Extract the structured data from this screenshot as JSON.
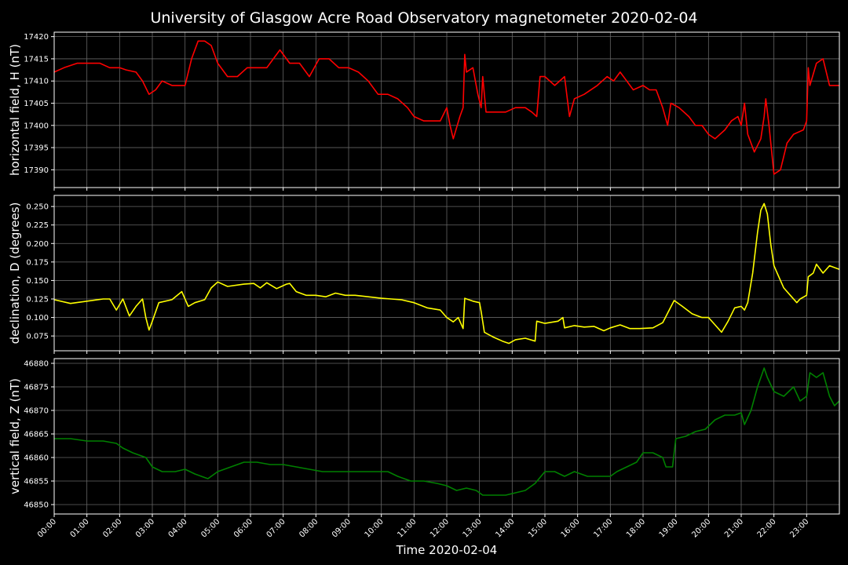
{
  "chart_data": {
    "type": "line",
    "title": "University of Glasgow Acre Road Observatory magnetometer 2020-02-04",
    "xlabel": "Time 2020-02-04",
    "x_ticks": [
      "00:00",
      "01:00",
      "02:00",
      "03:00",
      "04:00",
      "05:00",
      "06:00",
      "07:00",
      "08:00",
      "09:00",
      "10:00",
      "11:00",
      "12:00",
      "13:00",
      "14:00",
      "15:00",
      "16:00",
      "17:00",
      "18:00",
      "19:00",
      "20:00",
      "21:00",
      "22:00",
      "23:00"
    ],
    "xlim_hours": [
      0,
      24
    ],
    "grid": true,
    "panels": [
      {
        "ylabel": "horizontal field, H (nT)",
        "color": "#ff0000",
        "ylim": [
          17386,
          17421
        ],
        "yticks": [
          17390,
          17395,
          17400,
          17405,
          17410,
          17415,
          17420
        ],
        "points": [
          [
            0,
            17412
          ],
          [
            0.3,
            17413
          ],
          [
            0.7,
            17414
          ],
          [
            1,
            17414
          ],
          [
            1.4,
            17414
          ],
          [
            1.7,
            17413
          ],
          [
            2,
            17413
          ],
          [
            2.2,
            17412.5
          ],
          [
            2.5,
            17412
          ],
          [
            2.7,
            17410
          ],
          [
            2.9,
            17407
          ],
          [
            3.1,
            17408
          ],
          [
            3.3,
            17410
          ],
          [
            3.6,
            17409
          ],
          [
            3.8,
            17409
          ],
          [
            4,
            17409
          ],
          [
            4.2,
            17415
          ],
          [
            4.4,
            17419
          ],
          [
            4.6,
            17419
          ],
          [
            4.8,
            17418
          ],
          [
            5.0,
            17414
          ],
          [
            5.3,
            17411
          ],
          [
            5.6,
            17411
          ],
          [
            5.9,
            17413
          ],
          [
            6.2,
            17413
          ],
          [
            6.5,
            17413
          ],
          [
            6.7,
            17415
          ],
          [
            6.9,
            17417
          ],
          [
            7.2,
            17414
          ],
          [
            7.5,
            17414
          ],
          [
            7.8,
            17411
          ],
          [
            8.1,
            17415
          ],
          [
            8.4,
            17415
          ],
          [
            8.7,
            17413
          ],
          [
            9.0,
            17413
          ],
          [
            9.3,
            17412
          ],
          [
            9.6,
            17410
          ],
          [
            9.9,
            17407
          ],
          [
            10.2,
            17407
          ],
          [
            10.5,
            17406
          ],
          [
            10.8,
            17404
          ],
          [
            11.0,
            17402
          ],
          [
            11.3,
            17401
          ],
          [
            11.6,
            17401
          ],
          [
            11.8,
            17401
          ],
          [
            12.0,
            17404
          ],
          [
            12.1,
            17400
          ],
          [
            12.2,
            17397
          ],
          [
            12.4,
            17402
          ],
          [
            12.5,
            17404
          ],
          [
            12.55,
            17416
          ],
          [
            12.6,
            17412
          ],
          [
            12.8,
            17413
          ],
          [
            12.95,
            17407
          ],
          [
            13.05,
            17404
          ],
          [
            13.1,
            17411
          ],
          [
            13.2,
            17403
          ],
          [
            13.5,
            17403
          ],
          [
            13.8,
            17403
          ],
          [
            14.1,
            17404
          ],
          [
            14.4,
            17404
          ],
          [
            14.6,
            17403
          ],
          [
            14.75,
            17402
          ],
          [
            14.85,
            17411
          ],
          [
            15.0,
            17411
          ],
          [
            15.3,
            17409
          ],
          [
            15.6,
            17411
          ],
          [
            15.75,
            17402
          ],
          [
            15.9,
            17406
          ],
          [
            16.2,
            17407
          ],
          [
            16.6,
            17409
          ],
          [
            16.9,
            17411
          ],
          [
            17.1,
            17410
          ],
          [
            17.3,
            17412
          ],
          [
            17.5,
            17410
          ],
          [
            17.7,
            17408
          ],
          [
            18.0,
            17409
          ],
          [
            18.2,
            17408
          ],
          [
            18.4,
            17408
          ],
          [
            18.6,
            17404
          ],
          [
            18.75,
            17400
          ],
          [
            18.85,
            17405
          ],
          [
            19.1,
            17404
          ],
          [
            19.4,
            17402
          ],
          [
            19.6,
            17400
          ],
          [
            19.8,
            17400
          ],
          [
            20.0,
            17398
          ],
          [
            20.2,
            17397
          ],
          [
            20.5,
            17399
          ],
          [
            20.7,
            17401
          ],
          [
            20.9,
            17402
          ],
          [
            21.0,
            17400
          ],
          [
            21.1,
            17405
          ],
          [
            21.2,
            17398
          ],
          [
            21.4,
            17394
          ],
          [
            21.6,
            17397
          ],
          [
            21.7,
            17402
          ],
          [
            21.75,
            17406
          ],
          [
            21.85,
            17400
          ],
          [
            22.0,
            17389
          ],
          [
            22.2,
            17390
          ],
          [
            22.4,
            17396
          ],
          [
            22.6,
            17398
          ],
          [
            22.9,
            17399
          ],
          [
            23.0,
            17401
          ],
          [
            23.05,
            17413
          ],
          [
            23.1,
            17409
          ],
          [
            23.3,
            17414
          ],
          [
            23.5,
            17415
          ],
          [
            23.7,
            17409
          ],
          [
            24.0,
            17409
          ]
        ]
      },
      {
        "ylabel": "declination, D (degrees)",
        "color": "#ffff00",
        "ylim": [
          0.055,
          0.265
        ],
        "yticks": [
          0.075,
          0.1,
          0.125,
          0.15,
          0.175,
          0.2,
          0.225,
          0.25
        ],
        "ytick_labels": [
          "0.075",
          "0.100",
          "0.125",
          "0.150",
          "0.175",
          "0.200",
          "0.225",
          "0.250"
        ],
        "points": [
          [
            0,
            0.124
          ],
          [
            0.5,
            0.119
          ],
          [
            1,
            0.122
          ],
          [
            1.5,
            0.125
          ],
          [
            1.7,
            0.125
          ],
          [
            1.9,
            0.11
          ],
          [
            2.1,
            0.125
          ],
          [
            2.3,
            0.102
          ],
          [
            2.5,
            0.115
          ],
          [
            2.7,
            0.125
          ],
          [
            2.8,
            0.1
          ],
          [
            2.9,
            0.083
          ],
          [
            3.0,
            0.095
          ],
          [
            3.2,
            0.12
          ],
          [
            3.6,
            0.124
          ],
          [
            3.9,
            0.135
          ],
          [
            4.1,
            0.115
          ],
          [
            4.3,
            0.12
          ],
          [
            4.6,
            0.124
          ],
          [
            4.8,
            0.14
          ],
          [
            5.0,
            0.148
          ],
          [
            5.3,
            0.142
          ],
          [
            5.8,
            0.145
          ],
          [
            6.1,
            0.146
          ],
          [
            6.3,
            0.14
          ],
          [
            6.5,
            0.147
          ],
          [
            6.8,
            0.139
          ],
          [
            7.1,
            0.145
          ],
          [
            7.2,
            0.146
          ],
          [
            7.4,
            0.135
          ],
          [
            7.7,
            0.13
          ],
          [
            8.0,
            0.13
          ],
          [
            8.3,
            0.128
          ],
          [
            8.6,
            0.133
          ],
          [
            8.9,
            0.13
          ],
          [
            9.2,
            0.13
          ],
          [
            9.6,
            0.128
          ],
          [
            10.0,
            0.126
          ],
          [
            10.3,
            0.125
          ],
          [
            10.6,
            0.124
          ],
          [
            11.0,
            0.12
          ],
          [
            11.4,
            0.113
          ],
          [
            11.8,
            0.11
          ],
          [
            12.0,
            0.1
          ],
          [
            12.2,
            0.094
          ],
          [
            12.35,
            0.1
          ],
          [
            12.5,
            0.085
          ],
          [
            12.55,
            0.126
          ],
          [
            12.8,
            0.122
          ],
          [
            13.0,
            0.12
          ],
          [
            13.05,
            0.108
          ],
          [
            13.15,
            0.08
          ],
          [
            13.4,
            0.074
          ],
          [
            13.7,
            0.068
          ],
          [
            13.9,
            0.065
          ],
          [
            14.1,
            0.07
          ],
          [
            14.4,
            0.072
          ],
          [
            14.7,
            0.068
          ],
          [
            14.75,
            0.095
          ],
          [
            15.0,
            0.092
          ],
          [
            15.4,
            0.095
          ],
          [
            15.55,
            0.1
          ],
          [
            15.6,
            0.086
          ],
          [
            15.9,
            0.089
          ],
          [
            16.2,
            0.087
          ],
          [
            16.5,
            0.088
          ],
          [
            16.8,
            0.082
          ],
          [
            17.0,
            0.086
          ],
          [
            17.3,
            0.09
          ],
          [
            17.6,
            0.085
          ],
          [
            17.9,
            0.085
          ],
          [
            18.3,
            0.086
          ],
          [
            18.6,
            0.093
          ],
          [
            18.8,
            0.11
          ],
          [
            18.95,
            0.123
          ],
          [
            19.2,
            0.115
          ],
          [
            19.5,
            0.105
          ],
          [
            19.8,
            0.1
          ],
          [
            20.0,
            0.1
          ],
          [
            20.2,
            0.09
          ],
          [
            20.4,
            0.08
          ],
          [
            20.6,
            0.095
          ],
          [
            20.8,
            0.113
          ],
          [
            21.0,
            0.115
          ],
          [
            21.1,
            0.11
          ],
          [
            21.2,
            0.12
          ],
          [
            21.35,
            0.16
          ],
          [
            21.5,
            0.215
          ],
          [
            21.6,
            0.245
          ],
          [
            21.7,
            0.254
          ],
          [
            21.8,
            0.24
          ],
          [
            21.9,
            0.2
          ],
          [
            22.0,
            0.17
          ],
          [
            22.1,
            0.16
          ],
          [
            22.3,
            0.14
          ],
          [
            22.5,
            0.13
          ],
          [
            22.7,
            0.12
          ],
          [
            22.8,
            0.125
          ],
          [
            23.0,
            0.13
          ],
          [
            23.05,
            0.155
          ],
          [
            23.2,
            0.16
          ],
          [
            23.3,
            0.172
          ],
          [
            23.5,
            0.16
          ],
          [
            23.7,
            0.17
          ],
          [
            24.0,
            0.165
          ]
        ]
      },
      {
        "ylabel": "vertical field, Z (nT)",
        "color": "#008000",
        "ylim": [
          46848,
          46881
        ],
        "yticks": [
          46850,
          46855,
          46860,
          46865,
          46870,
          46875,
          46880
        ],
        "points": [
          [
            0,
            46864
          ],
          [
            0.5,
            46864
          ],
          [
            1,
            46863.5
          ],
          [
            1.5,
            46863.5
          ],
          [
            1.9,
            46863
          ],
          [
            2.1,
            46862
          ],
          [
            2.4,
            46861
          ],
          [
            2.8,
            46860
          ],
          [
            3.0,
            46858
          ],
          [
            3.3,
            46857
          ],
          [
            3.7,
            46857
          ],
          [
            4.0,
            46857.5
          ],
          [
            4.3,
            46856.5
          ],
          [
            4.7,
            46855.5
          ],
          [
            5.0,
            46857
          ],
          [
            5.4,
            46858
          ],
          [
            5.8,
            46859
          ],
          [
            6.2,
            46859
          ],
          [
            6.6,
            46858.5
          ],
          [
            7.0,
            46858.5
          ],
          [
            7.4,
            46858
          ],
          [
            7.8,
            46857.5
          ],
          [
            8.2,
            46857
          ],
          [
            8.6,
            46857
          ],
          [
            9.0,
            46857
          ],
          [
            9.4,
            46857
          ],
          [
            9.8,
            46857
          ],
          [
            10.2,
            46857
          ],
          [
            10.5,
            46856
          ],
          [
            10.9,
            46855
          ],
          [
            11.3,
            46855
          ],
          [
            11.7,
            46854.5
          ],
          [
            12.0,
            46854
          ],
          [
            12.3,
            46853
          ],
          [
            12.6,
            46853.5
          ],
          [
            12.9,
            46853
          ],
          [
            13.1,
            46852
          ],
          [
            13.4,
            46852
          ],
          [
            13.8,
            46852
          ],
          [
            14.1,
            46852.5
          ],
          [
            14.4,
            46853
          ],
          [
            14.7,
            46854.5
          ],
          [
            15.0,
            46857
          ],
          [
            15.3,
            46857
          ],
          [
            15.6,
            46856
          ],
          [
            15.9,
            46857
          ],
          [
            16.3,
            46856
          ],
          [
            16.7,
            46856
          ],
          [
            17.0,
            46856
          ],
          [
            17.2,
            46857
          ],
          [
            17.5,
            46858
          ],
          [
            17.8,
            46859
          ],
          [
            18.0,
            46861
          ],
          [
            18.3,
            46861
          ],
          [
            18.6,
            46860
          ],
          [
            18.7,
            46858
          ],
          [
            18.9,
            46858
          ],
          [
            19.0,
            46864
          ],
          [
            19.3,
            46864.5
          ],
          [
            19.6,
            46865.5
          ],
          [
            19.9,
            46866
          ],
          [
            20.2,
            46868
          ],
          [
            20.5,
            46869
          ],
          [
            20.8,
            46869
          ],
          [
            21.0,
            46869.5
          ],
          [
            21.1,
            46867
          ],
          [
            21.3,
            46870
          ],
          [
            21.5,
            46875
          ],
          [
            21.7,
            46879
          ],
          [
            21.8,
            46877
          ],
          [
            22.0,
            46874
          ],
          [
            22.3,
            46873
          ],
          [
            22.6,
            46875
          ],
          [
            22.8,
            46872
          ],
          [
            23.0,
            46873
          ],
          [
            23.1,
            46878
          ],
          [
            23.3,
            46877
          ],
          [
            23.5,
            46878
          ],
          [
            23.7,
            46873
          ],
          [
            23.85,
            46871
          ],
          [
            24.0,
            46872
          ]
        ]
      }
    ]
  },
  "colors": {
    "background": "#000000",
    "foreground": "#ffffff",
    "grid": "#666666"
  }
}
